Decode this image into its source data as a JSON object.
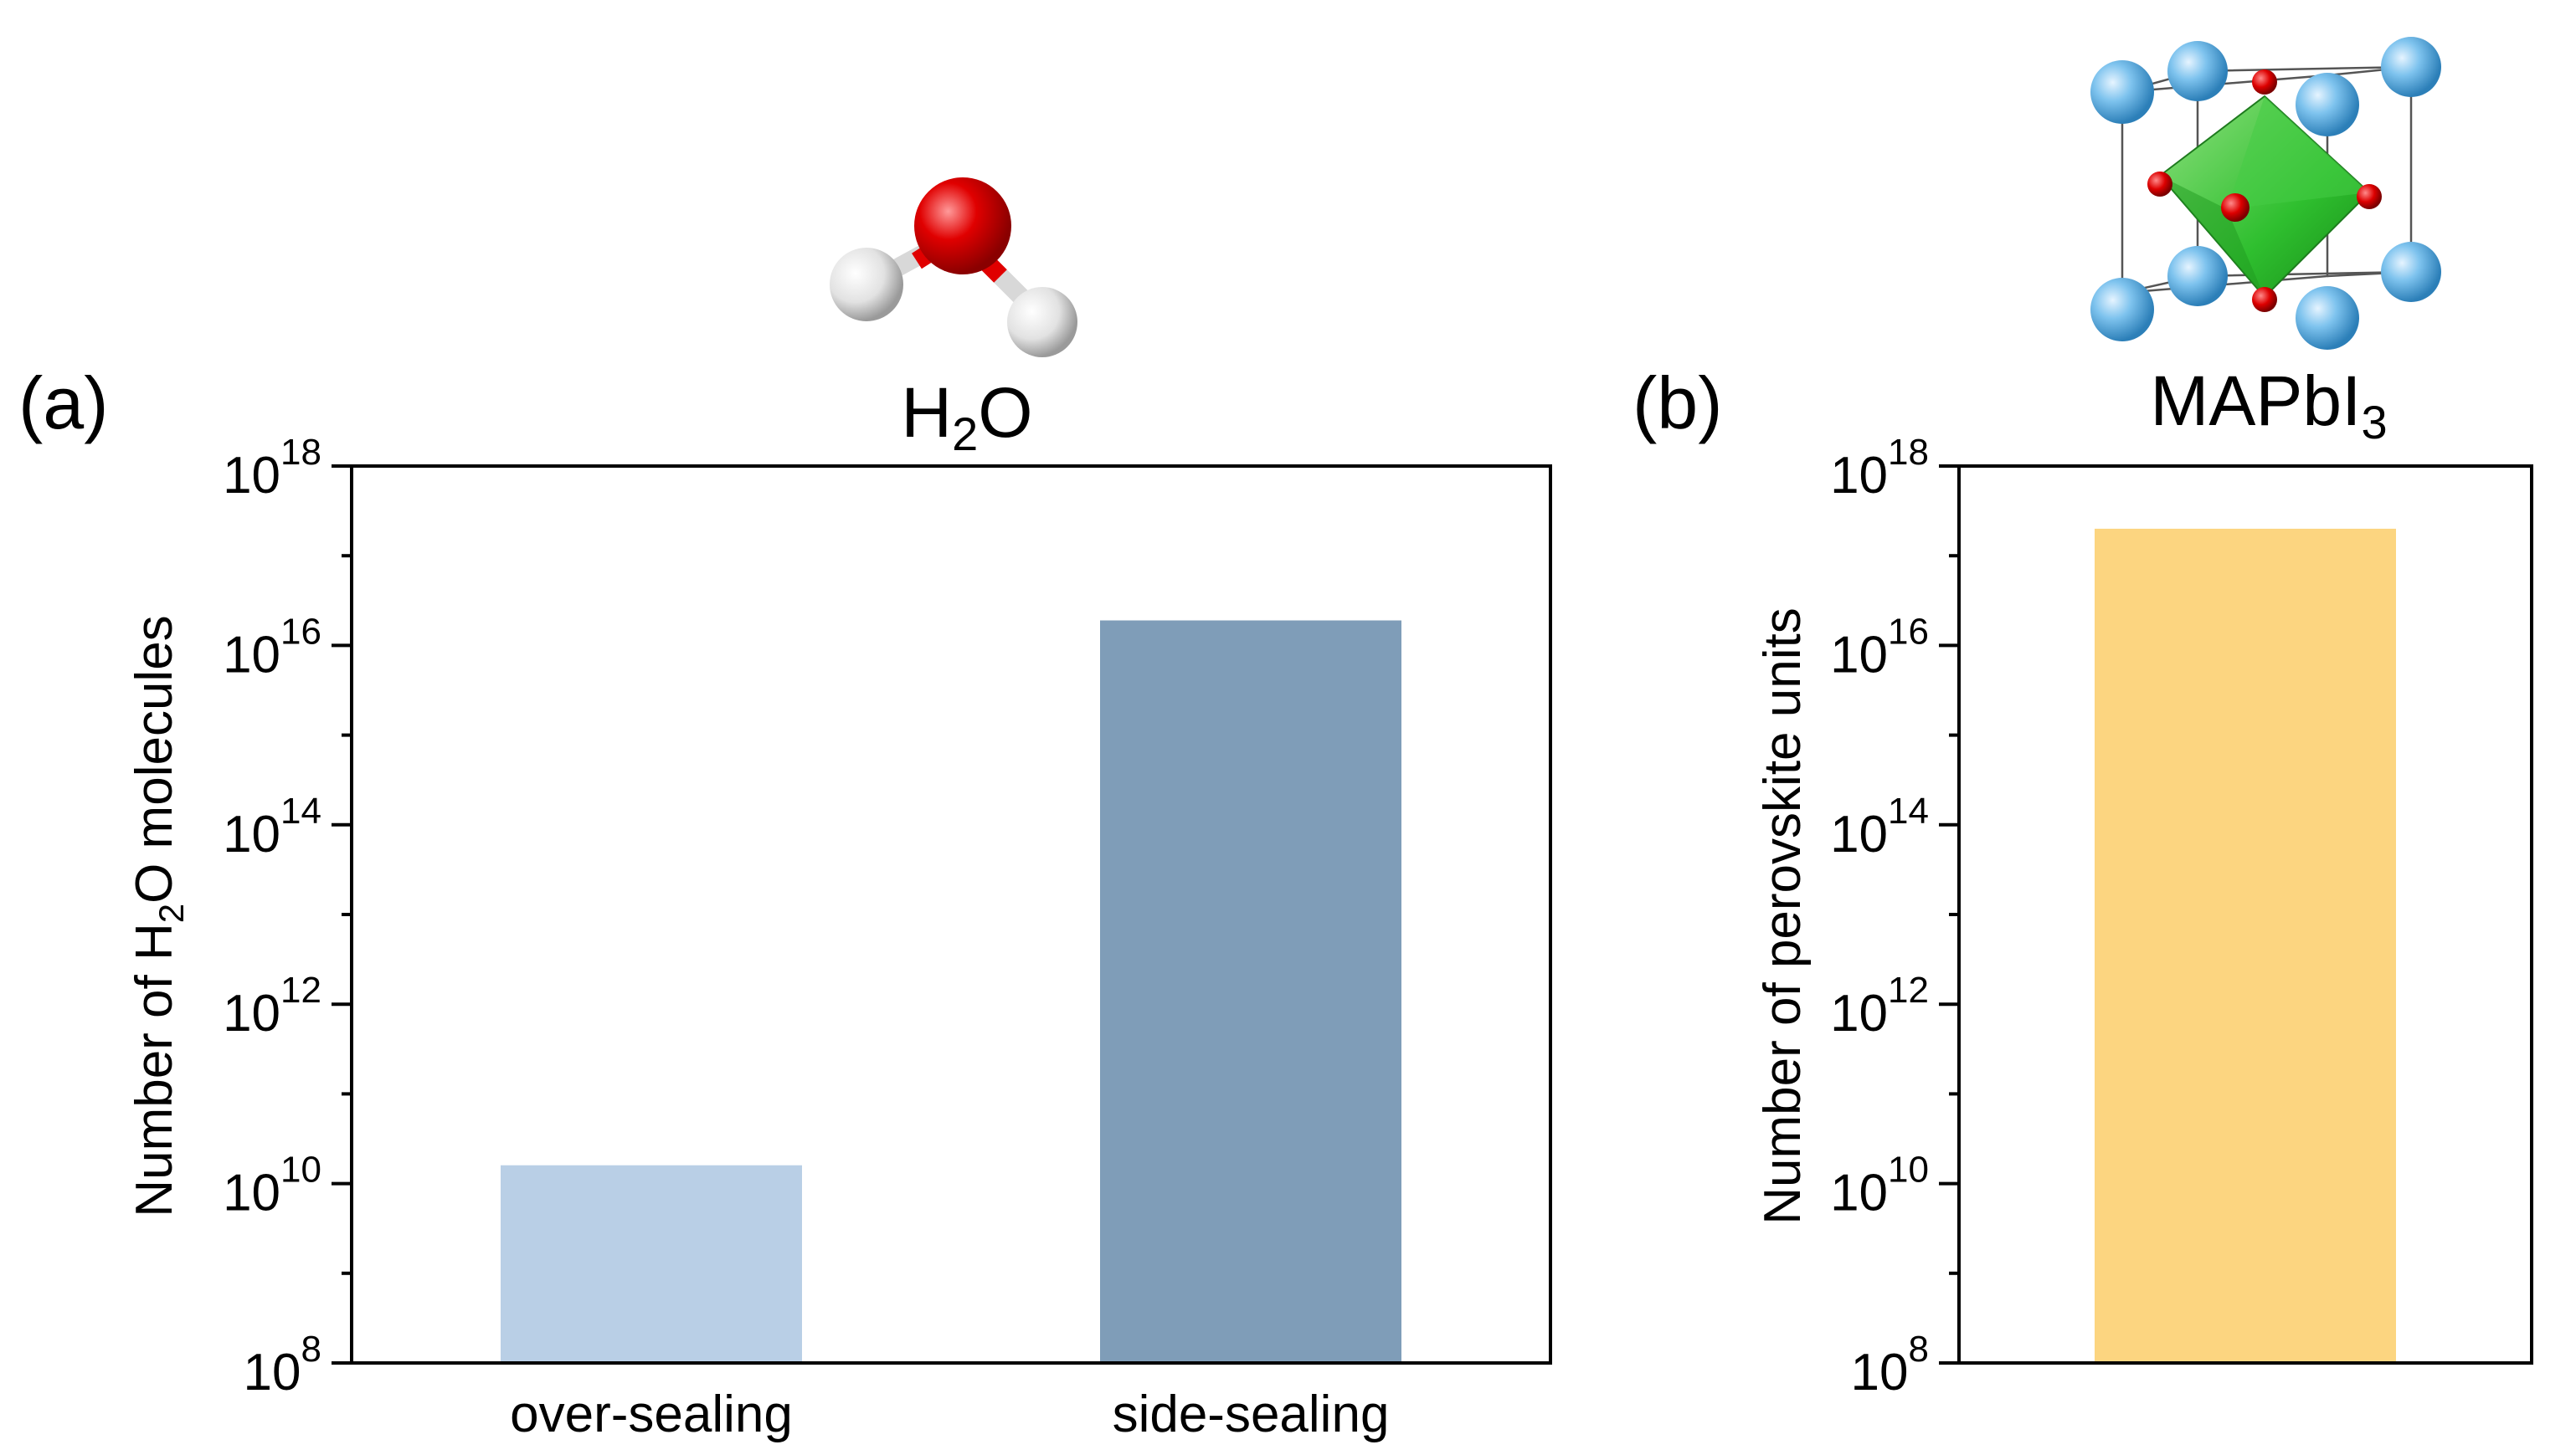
{
  "chart_data": [
    {
      "type": "bar",
      "panel_label": "(a)",
      "title_base": "H",
      "title_sub": "2",
      "title_end": "O",
      "ylabel_start": "Number of H",
      "ylabel_sub": "2",
      "ylabel_end": "O molecules",
      "yscale": "log",
      "ylim": [
        100000000.0,
        1e+18
      ],
      "yticks": [
        {
          "base": "10",
          "exp": "8"
        },
        {
          "base": "10",
          "exp": "10"
        },
        {
          "base": "10",
          "exp": "12"
        },
        {
          "base": "10",
          "exp": "14"
        },
        {
          "base": "10",
          "exp": "16"
        },
        {
          "base": "10",
          "exp": "18"
        }
      ],
      "categories": [
        "over-sealing",
        "side-sealing"
      ],
      "values": [
        16000000000.0,
        1.9e+16
      ],
      "colors": [
        "#b9cfe6",
        "#7f9db8"
      ],
      "grid": false,
      "icon": "water-molecule-icon"
    },
    {
      "type": "bar",
      "panel_label": "(b)",
      "title_base": "MAPbI",
      "title_sub": "3",
      "title_end": "",
      "ylabel_start": "Number of perovskite units",
      "ylabel_sub": "",
      "ylabel_end": "",
      "yscale": "log",
      "ylim": [
        100000000.0,
        1e+18
      ],
      "yticks": [
        {
          "base": "10",
          "exp": "8"
        },
        {
          "base": "10",
          "exp": "10"
        },
        {
          "base": "10",
          "exp": "12"
        },
        {
          "base": "10",
          "exp": "14"
        },
        {
          "base": "10",
          "exp": "16"
        },
        {
          "base": "10",
          "exp": "18"
        }
      ],
      "categories": [
        ""
      ],
      "values": [
        2e+17
      ],
      "colors": [
        "#fcd580"
      ],
      "grid": false,
      "icon": "perovskite-crystal-icon"
    }
  ]
}
